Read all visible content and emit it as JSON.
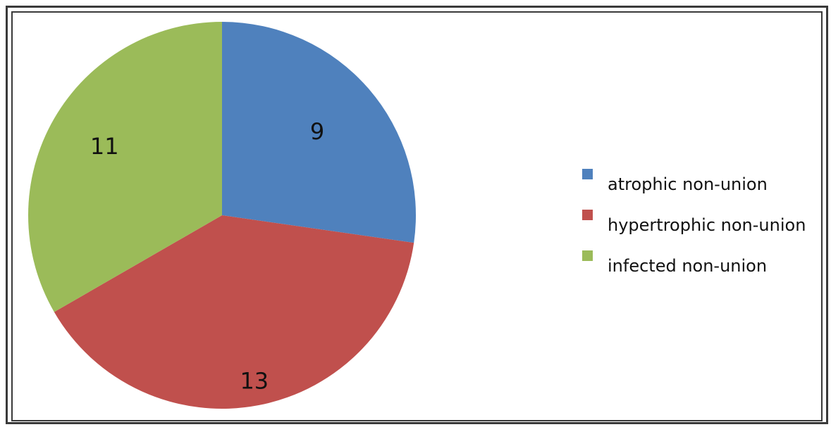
{
  "chart_data": {
    "type": "pie",
    "title": "",
    "slices": [
      {
        "label": "atrophic non-union",
        "value": 9,
        "color": "#4f81bd"
      },
      {
        "label": "hypertrophic non-union",
        "value": 13,
        "color": "#c0504d"
      },
      {
        "label": "infected non-union",
        "value": 11,
        "color": "#9bbb59"
      }
    ],
    "data_labels": [
      "9",
      "13",
      "11"
    ],
    "legend_position": "right",
    "start_angle": "12 o'clock",
    "direction": "clockwise"
  },
  "colors": {
    "frame": "#3a3a3a",
    "background": "#ffffff"
  }
}
